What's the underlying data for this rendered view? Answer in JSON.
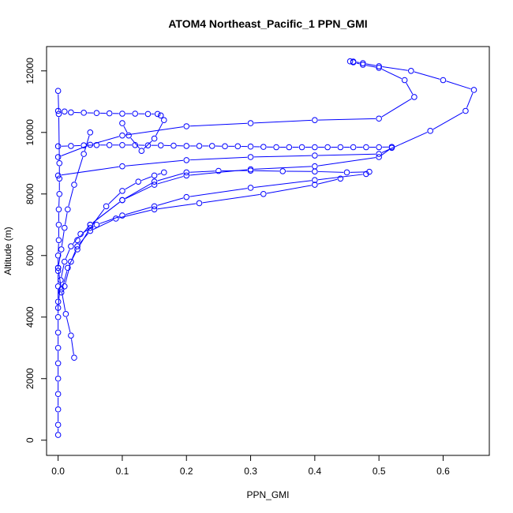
{
  "chart_data": {
    "type": "line",
    "title": "ATOM4 Northeast_Pacific_1 PPN_GMI",
    "xlabel": "PPN_GMI",
    "ylabel": "Altitude (m)",
    "xlim": [
      -0.018,
      0.672
    ],
    "ylim": [
      -494,
      12790
    ],
    "xticks": [
      0.0,
      0.1,
      0.2,
      0.3,
      0.4,
      0.5,
      0.6
    ],
    "xtick_labels": [
      "0.0",
      "0.1",
      "0.2",
      "0.3",
      "0.4",
      "0.5",
      "0.6"
    ],
    "yticks": [
      0,
      2000,
      4000,
      6000,
      8000,
      10000,
      12000
    ],
    "ytick_labels": [
      "0",
      "2000",
      "4000",
      "6000",
      "8000",
      "10000",
      "12000"
    ],
    "grid": false,
    "colors": {
      "series": "#0000ff",
      "axes": "#000000"
    },
    "series": [
      {
        "values_x": [
          0.0,
          0.0,
          0.0,
          0.0,
          0.0,
          0.0,
          0.0,
          0.0,
          0.0,
          0.0,
          0.0,
          0.0,
          0.0,
          0.001,
          0.001,
          0.001,
          0.002,
          0.002,
          0.002,
          0.001,
          0.0
        ],
        "values_y": [
          170,
          500,
          1000,
          1500,
          2000,
          2500,
          3000,
          3500,
          4000,
          4500,
          5000,
          5500,
          6000,
          6500,
          7000,
          7500,
          8000,
          8500,
          9000,
          10600,
          11350
        ]
      },
      {
        "values_x": [
          0.0,
          0.004,
          0.01,
          0.02,
          0.035,
          0.06,
          0.1,
          0.15,
          0.2,
          0.3,
          0.4,
          0.48
        ],
        "values_y": [
          4300,
          5200,
          5800,
          6300,
          6700,
          7000,
          7300,
          7600,
          7900,
          8200,
          8450,
          8650
        ]
      },
      {
        "values_x": [
          0.01,
          0.02,
          0.03,
          0.05,
          0.09,
          0.15,
          0.22,
          0.32,
          0.4,
          0.44
        ],
        "values_y": [
          5000,
          5800,
          6300,
          6800,
          7200,
          7500,
          7700,
          8000,
          8300,
          8500
        ]
      },
      {
        "values_x": [
          0.005,
          0.015,
          0.03,
          0.05,
          0.075,
          0.1,
          0.125,
          0.15,
          0.165
        ],
        "values_y": [
          4800,
          5600,
          6200,
          6900,
          7600,
          8100,
          8400,
          8600,
          8700
        ]
      },
      {
        "values_x": [
          0.03,
          0.05,
          0.1,
          0.15,
          0.2,
          0.25,
          0.3,
          0.35,
          0.4,
          0.45,
          0.485
        ],
        "values_y": [
          6500,
          7000,
          7800,
          8400,
          8700,
          8750,
          8760,
          8740,
          8730,
          8700,
          8720
        ]
      },
      {
        "values_x": [
          0.05,
          0.1,
          0.15,
          0.2,
          0.3,
          0.4,
          0.5,
          0.52
        ],
        "values_y": [
          7000,
          7800,
          8300,
          8600,
          8800,
          8900,
          9200,
          9500
        ]
      },
      {
        "values_x": [
          0.025,
          0.02,
          0.012,
          0.005,
          0.0
        ],
        "values_y": [
          2680,
          3400,
          4100,
          4900,
          5600
        ]
      },
      {
        "values_x": [
          0.0,
          0.005,
          0.01,
          0.015,
          0.025,
          0.04,
          0.05
        ],
        "values_y": [
          5600,
          6200,
          6900,
          7500,
          8300,
          9300,
          10000
        ]
      },
      {
        "values_x": [
          0.0,
          0.02,
          0.04,
          0.06,
          0.08,
          0.1,
          0.12,
          0.14,
          0.16,
          0.18,
          0.2,
          0.22,
          0.24,
          0.26,
          0.28,
          0.3,
          0.32,
          0.34,
          0.36,
          0.38,
          0.4,
          0.42,
          0.44,
          0.46,
          0.48,
          0.5,
          0.52
        ],
        "values_y": [
          9550,
          9560,
          9580,
          9590,
          9590,
          9590,
          9590,
          9580,
          9580,
          9570,
          9560,
          9560,
          9560,
          9550,
          9550,
          9540,
          9530,
          9520,
          9520,
          9520,
          9520,
          9520,
          9520,
          9520,
          9520,
          9520,
          9530
        ]
      },
      {
        "values_x": [
          0.0,
          0.01,
          0.02,
          0.04,
          0.06,
          0.08,
          0.1,
          0.12,
          0.14,
          0.155,
          0.16,
          0.165,
          0.15,
          0.13,
          0.11,
          0.1
        ],
        "values_y": [
          10700,
          10680,
          10650,
          10640,
          10630,
          10620,
          10610,
          10610,
          10600,
          10600,
          10550,
          10400,
          9800,
          9400,
          9900,
          10300
        ]
      },
      {
        "values_x": [
          0.0,
          0.05,
          0.1,
          0.2,
          0.3,
          0.4,
          0.5,
          0.555,
          0.54,
          0.5,
          0.475,
          0.46,
          0.455
        ],
        "values_y": [
          9200,
          9600,
          9900,
          10200,
          10300,
          10400,
          10450,
          11150,
          11700,
          12100,
          12200,
          12280,
          12310
        ]
      },
      {
        "values_x": [
          0.0,
          0.1,
          0.2,
          0.3,
          0.4,
          0.5,
          0.58,
          0.635,
          0.648,
          0.6,
          0.55,
          0.5,
          0.475,
          0.46
        ],
        "values_y": [
          8600,
          8900,
          9100,
          9200,
          9250,
          9300,
          10050,
          10700,
          11380,
          11700,
          12000,
          12150,
          12250,
          12300
        ]
      }
    ]
  }
}
